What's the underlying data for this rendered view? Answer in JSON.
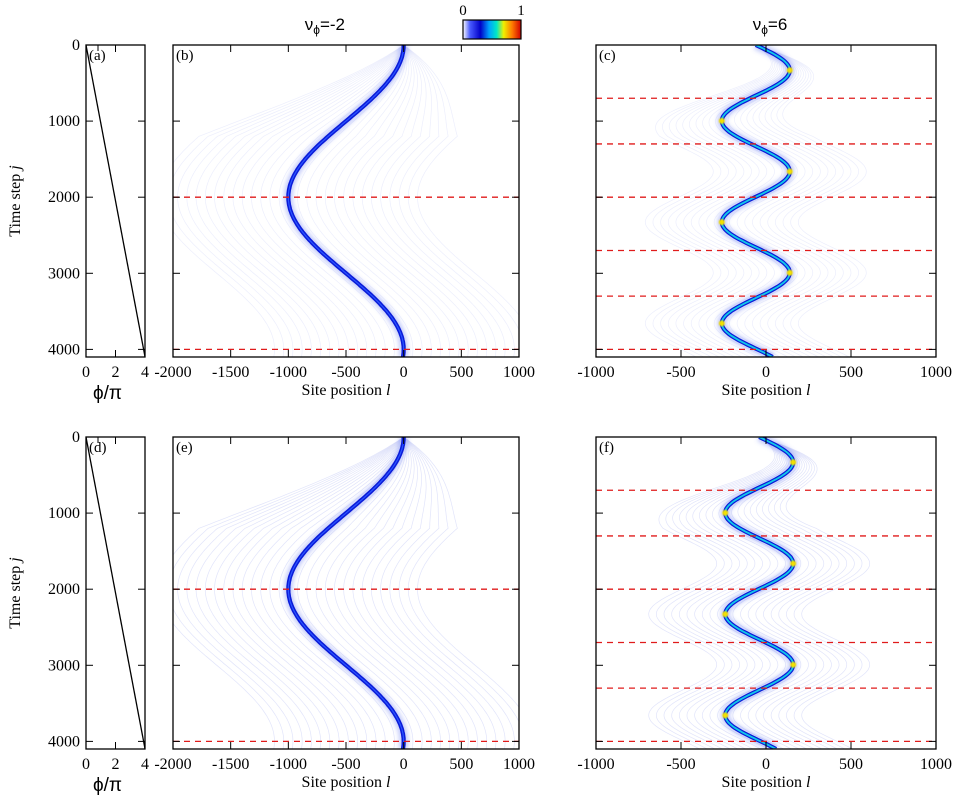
{
  "header": {
    "left_title": "ν",
    "left_sub": "ϕ",
    "left_value": "=-2",
    "right_title": "ν",
    "right_sub": "ϕ",
    "right_value": "=6",
    "colorbar_min": "0",
    "colorbar_max": "1"
  },
  "colors": {
    "trajectory_core": "#0a1ad8",
    "trajectory_high": "#f4e000",
    "trajectory_peak": "#ff4a00",
    "background_ripple": "#c8cdf5",
    "guide_line": "#e01b1b"
  },
  "chart_data": [
    {
      "panel": "a",
      "type": "line",
      "title": "",
      "xlabel": "ϕ/π",
      "ylabel": "Time step j",
      "xlim": [
        0,
        4
      ],
      "ylim": [
        4100,
        0
      ],
      "x_ticks": [
        "0",
        "2",
        "4"
      ],
      "y_ticks": [
        "0",
        "1000",
        "2000",
        "3000",
        "4000"
      ],
      "series": [
        {
          "x": [
            0,
            4
          ],
          "y": [
            0,
            4096
          ]
        }
      ]
    },
    {
      "panel": "b",
      "type": "heatmap",
      "title": "",
      "xlabel": "Site position l",
      "xlim": [
        -2000,
        1000
      ],
      "ylim": [
        4100,
        0
      ],
      "x_ticks": [
        "-2000",
        "-1500",
        "-1000",
        "-500",
        "0",
        "500",
        "1000"
      ],
      "trajectory": {
        "center": -500,
        "amplitude": 500,
        "period": 4000,
        "phase_shift": 0
      },
      "guide_lines_y": [
        2000,
        4000
      ]
    },
    {
      "panel": "c",
      "type": "heatmap",
      "title": "",
      "xlabel": "Site position l",
      "xlim": [
        -1000,
        1000
      ],
      "ylim": [
        4100,
        0
      ],
      "x_ticks": [
        "-1000",
        "-500",
        "0",
        "500",
        "1000"
      ],
      "trajectory": {
        "center": -60,
        "amplitude": 200,
        "period": 1330,
        "phase_shift": 0
      },
      "guide_lines_y": [
        700,
        1300,
        2000,
        2700,
        3300,
        4000
      ]
    },
    {
      "panel": "d",
      "type": "line",
      "title": "",
      "xlabel": "ϕ/π",
      "ylabel": "Time step j",
      "xlim": [
        0,
        4
      ],
      "ylim": [
        4100,
        0
      ],
      "x_ticks": [
        "0",
        "2",
        "4"
      ],
      "y_ticks": [
        "0",
        "1000",
        "2000",
        "3000",
        "4000"
      ],
      "series": [
        {
          "x": [
            0,
            4
          ],
          "y": [
            0,
            4096
          ]
        }
      ]
    },
    {
      "panel": "e",
      "type": "heatmap",
      "title": "",
      "xlabel": "Site position l",
      "xlim": [
        -2000,
        1000
      ],
      "ylim": [
        4100,
        0
      ],
      "x_ticks": [
        "-2000",
        "-1500",
        "-1000",
        "-500",
        "0",
        "500",
        "1000"
      ],
      "trajectory": {
        "center": -500,
        "amplitude": 500,
        "period": 4000,
        "phase_shift": 0
      },
      "guide_lines_y": [
        2000,
        4000
      ]
    },
    {
      "panel": "f",
      "type": "heatmap",
      "title": "",
      "xlabel": "Site position l",
      "xlim": [
        -1000,
        1000
      ],
      "ylim": [
        4100,
        0
      ],
      "x_ticks": [
        "-1000",
        "-500",
        "0",
        "500",
        "1000"
      ],
      "trajectory": {
        "center": -40,
        "amplitude": 200,
        "period": 1330,
        "phase_shift": 0
      },
      "guide_lines_y": [
        700,
        1300,
        2000,
        2700,
        3300,
        4000
      ]
    }
  ]
}
